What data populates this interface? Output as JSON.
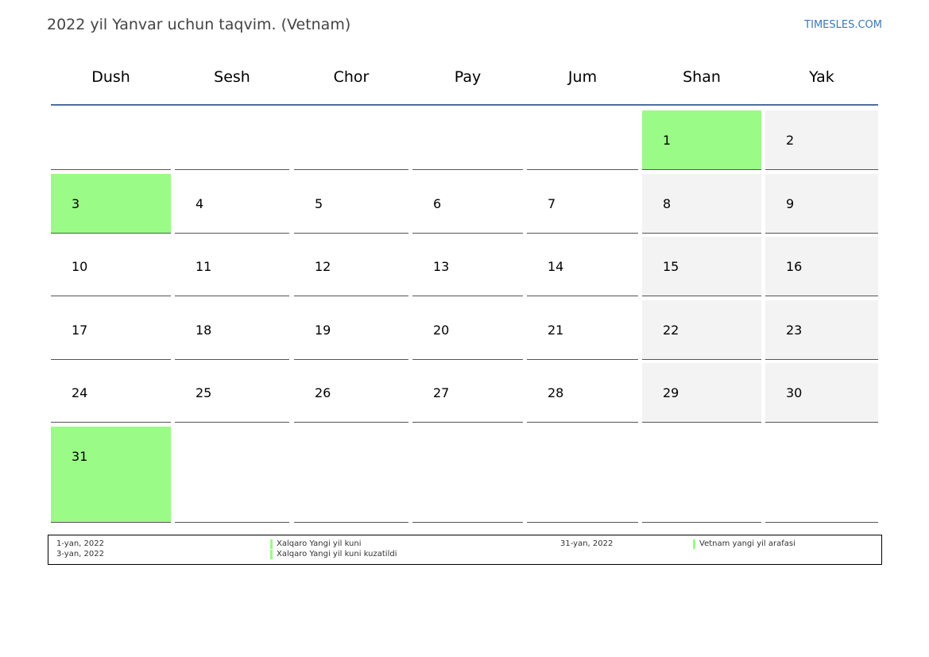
{
  "header": {
    "title": "2022 yil Yanvar uchun taqvim. (Vetnam)",
    "site": "TIMESLES.COM"
  },
  "weekdays": [
    "Dush",
    "Sesh",
    "Chor",
    "Pay",
    "Jum",
    "Shan",
    "Yak"
  ],
  "weeks": [
    [
      null,
      null,
      null,
      null,
      null,
      {
        "n": "1",
        "t": "holiday"
      },
      {
        "n": "2",
        "t": "weekend"
      }
    ],
    [
      {
        "n": "3",
        "t": "holiday"
      },
      {
        "n": "4"
      },
      {
        "n": "5"
      },
      {
        "n": "6"
      },
      {
        "n": "7"
      },
      {
        "n": "8",
        "t": "weekend"
      },
      {
        "n": "9",
        "t": "weekend"
      }
    ],
    [
      {
        "n": "10"
      },
      {
        "n": "11"
      },
      {
        "n": "12"
      },
      {
        "n": "13"
      },
      {
        "n": "14"
      },
      {
        "n": "15",
        "t": "weekend"
      },
      {
        "n": "16",
        "t": "weekend"
      }
    ],
    [
      {
        "n": "17"
      },
      {
        "n": "18"
      },
      {
        "n": "19"
      },
      {
        "n": "20"
      },
      {
        "n": "21"
      },
      {
        "n": "22",
        "t": "weekend"
      },
      {
        "n": "23",
        "t": "weekend"
      }
    ],
    [
      {
        "n": "24"
      },
      {
        "n": "25"
      },
      {
        "n": "26"
      },
      {
        "n": "27"
      },
      {
        "n": "28"
      },
      {
        "n": "29",
        "t": "weekend"
      },
      {
        "n": "30",
        "t": "weekend"
      }
    ],
    [
      {
        "n": "31",
        "t": "holiday"
      },
      null,
      null,
      null,
      null,
      null,
      null
    ]
  ],
  "colors": {
    "holiday": "#9afb86",
    "weekend": "#f3f3f3",
    "header_line": "#4f6f9a",
    "site_link": "#3a78b5"
  },
  "legend": {
    "left": [
      {
        "date": "1-yan, 2022",
        "name": "Xalqaro Yangi yil kuni"
      },
      {
        "date": "3-yan, 2022",
        "name": "Xalqaro Yangi yil kuni kuzatildi"
      }
    ],
    "right": [
      {
        "date": "31-yan, 2022",
        "name": "Vetnam yangi yil arafasi"
      }
    ]
  }
}
